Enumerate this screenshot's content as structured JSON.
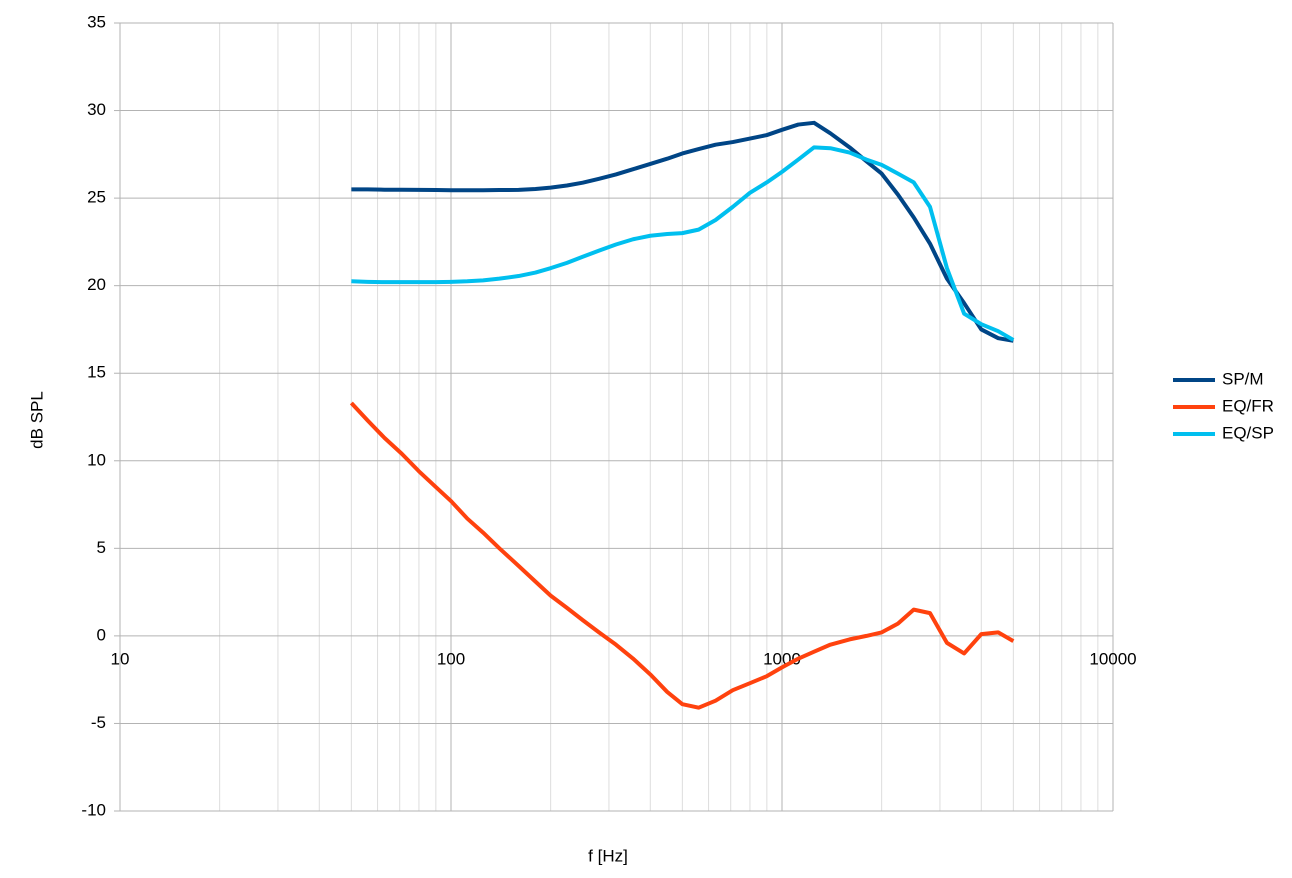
{
  "chart_data": {
    "type": "line",
    "x_label": "f [Hz]",
    "y_label": "dB SPL",
    "x": [
      50,
      56,
      63,
      71,
      80,
      90,
      100,
      112,
      125,
      140,
      160,
      180,
      200,
      224,
      250,
      280,
      315,
      355,
      400,
      450,
      500,
      560,
      630,
      710,
      800,
      900,
      1000,
      1120,
      1250,
      1400,
      1600,
      1800,
      2000,
      2240,
      2500,
      2800,
      3150,
      3550,
      4000,
      4500,
      5000
    ],
    "series": [
      {
        "name": "SP/M",
        "color": "#004586",
        "values": [
          25.5,
          25.5,
          25.48,
          25.48,
          25.47,
          25.46,
          25.45,
          25.45,
          25.45,
          25.46,
          25.47,
          25.52,
          25.6,
          25.72,
          25.88,
          26.1,
          26.35,
          26.65,
          26.95,
          27.25,
          27.55,
          27.8,
          28.05,
          28.2,
          28.4,
          28.6,
          28.9,
          29.2,
          29.3,
          28.7,
          27.9,
          27.1,
          26.4,
          25.2,
          23.9,
          22.4,
          20.4,
          19.0,
          17.5,
          17.0,
          16.85
        ]
      },
      {
        "name": "EQ/FR",
        "color": "#ff420e",
        "values": [
          13.3,
          12.3,
          11.3,
          10.4,
          9.4,
          8.5,
          7.7,
          6.7,
          5.9,
          5.0,
          4.0,
          3.1,
          2.3,
          1.6,
          0.9,
          0.2,
          -0.5,
          -1.3,
          -2.2,
          -3.2,
          -3.9,
          -4.1,
          -3.7,
          -3.1,
          -2.7,
          -2.3,
          -1.8,
          -1.3,
          -0.9,
          -0.5,
          -0.2,
          0.0,
          0.2,
          0.7,
          1.5,
          1.3,
          -0.4,
          -1.0,
          0.1,
          0.2,
          -0.3
        ]
      },
      {
        "name": "EQ/SP",
        "color": "#00bfef",
        "values": [
          20.25,
          20.22,
          20.2,
          20.2,
          20.2,
          20.2,
          20.22,
          20.25,
          20.3,
          20.4,
          20.55,
          20.75,
          21.0,
          21.3,
          21.65,
          22.0,
          22.35,
          22.65,
          22.85,
          22.95,
          23.0,
          23.2,
          23.75,
          24.5,
          25.3,
          25.9,
          26.5,
          27.2,
          27.9,
          27.85,
          27.6,
          27.2,
          26.9,
          26.4,
          25.9,
          24.5,
          21.0,
          18.4,
          17.8,
          17.4,
          16.9
        ]
      }
    ],
    "xlim": [
      10,
      10000
    ],
    "xticks": [
      10,
      100,
      1000,
      10000
    ],
    "log_x": true,
    "minor_grid": true,
    "ylim": [
      -10,
      35
    ],
    "yticks": [
      -10,
      -5,
      0,
      5,
      10,
      15,
      20,
      25,
      30,
      35
    ],
    "grid": true,
    "legend": "right"
  }
}
